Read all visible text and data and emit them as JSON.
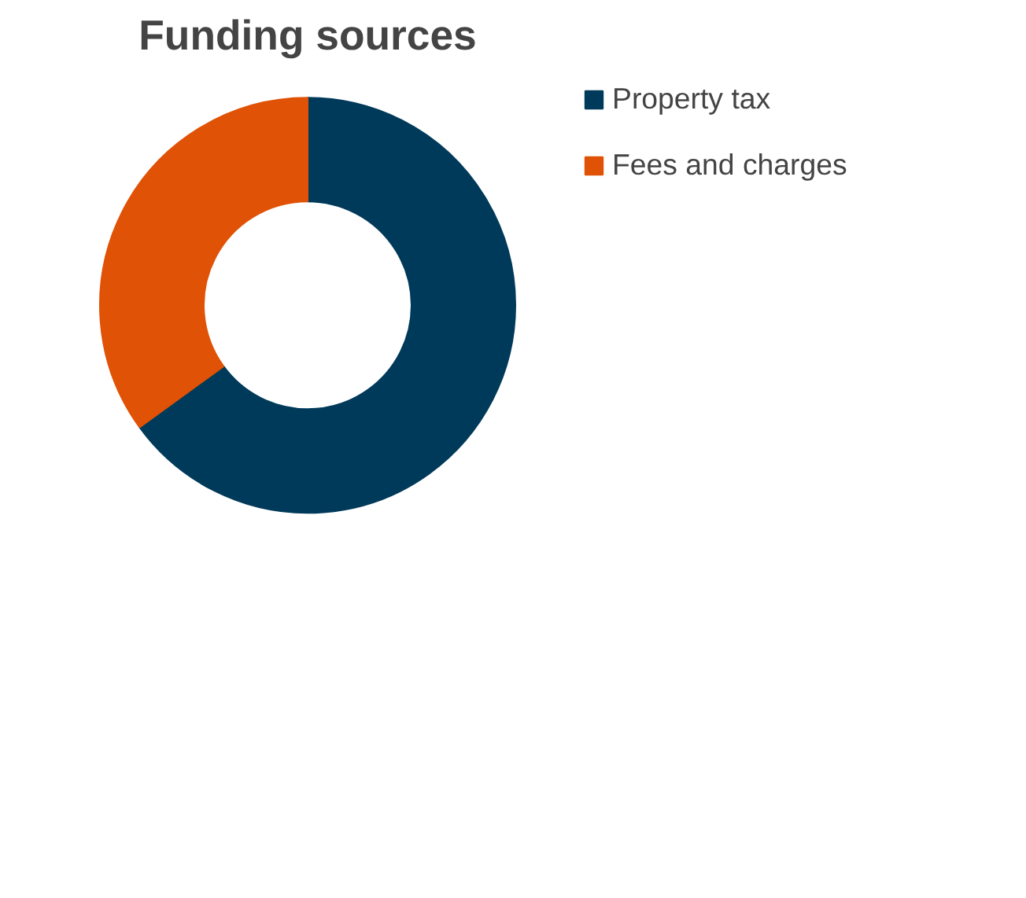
{
  "chart_data": {
    "type": "donut",
    "title": "Funding sources",
    "categories": [
      "Property tax",
      "Fees and charges"
    ],
    "values": [
      65,
      35
    ],
    "colors": [
      "#003a5a",
      "#e05206"
    ],
    "legend": "right"
  }
}
